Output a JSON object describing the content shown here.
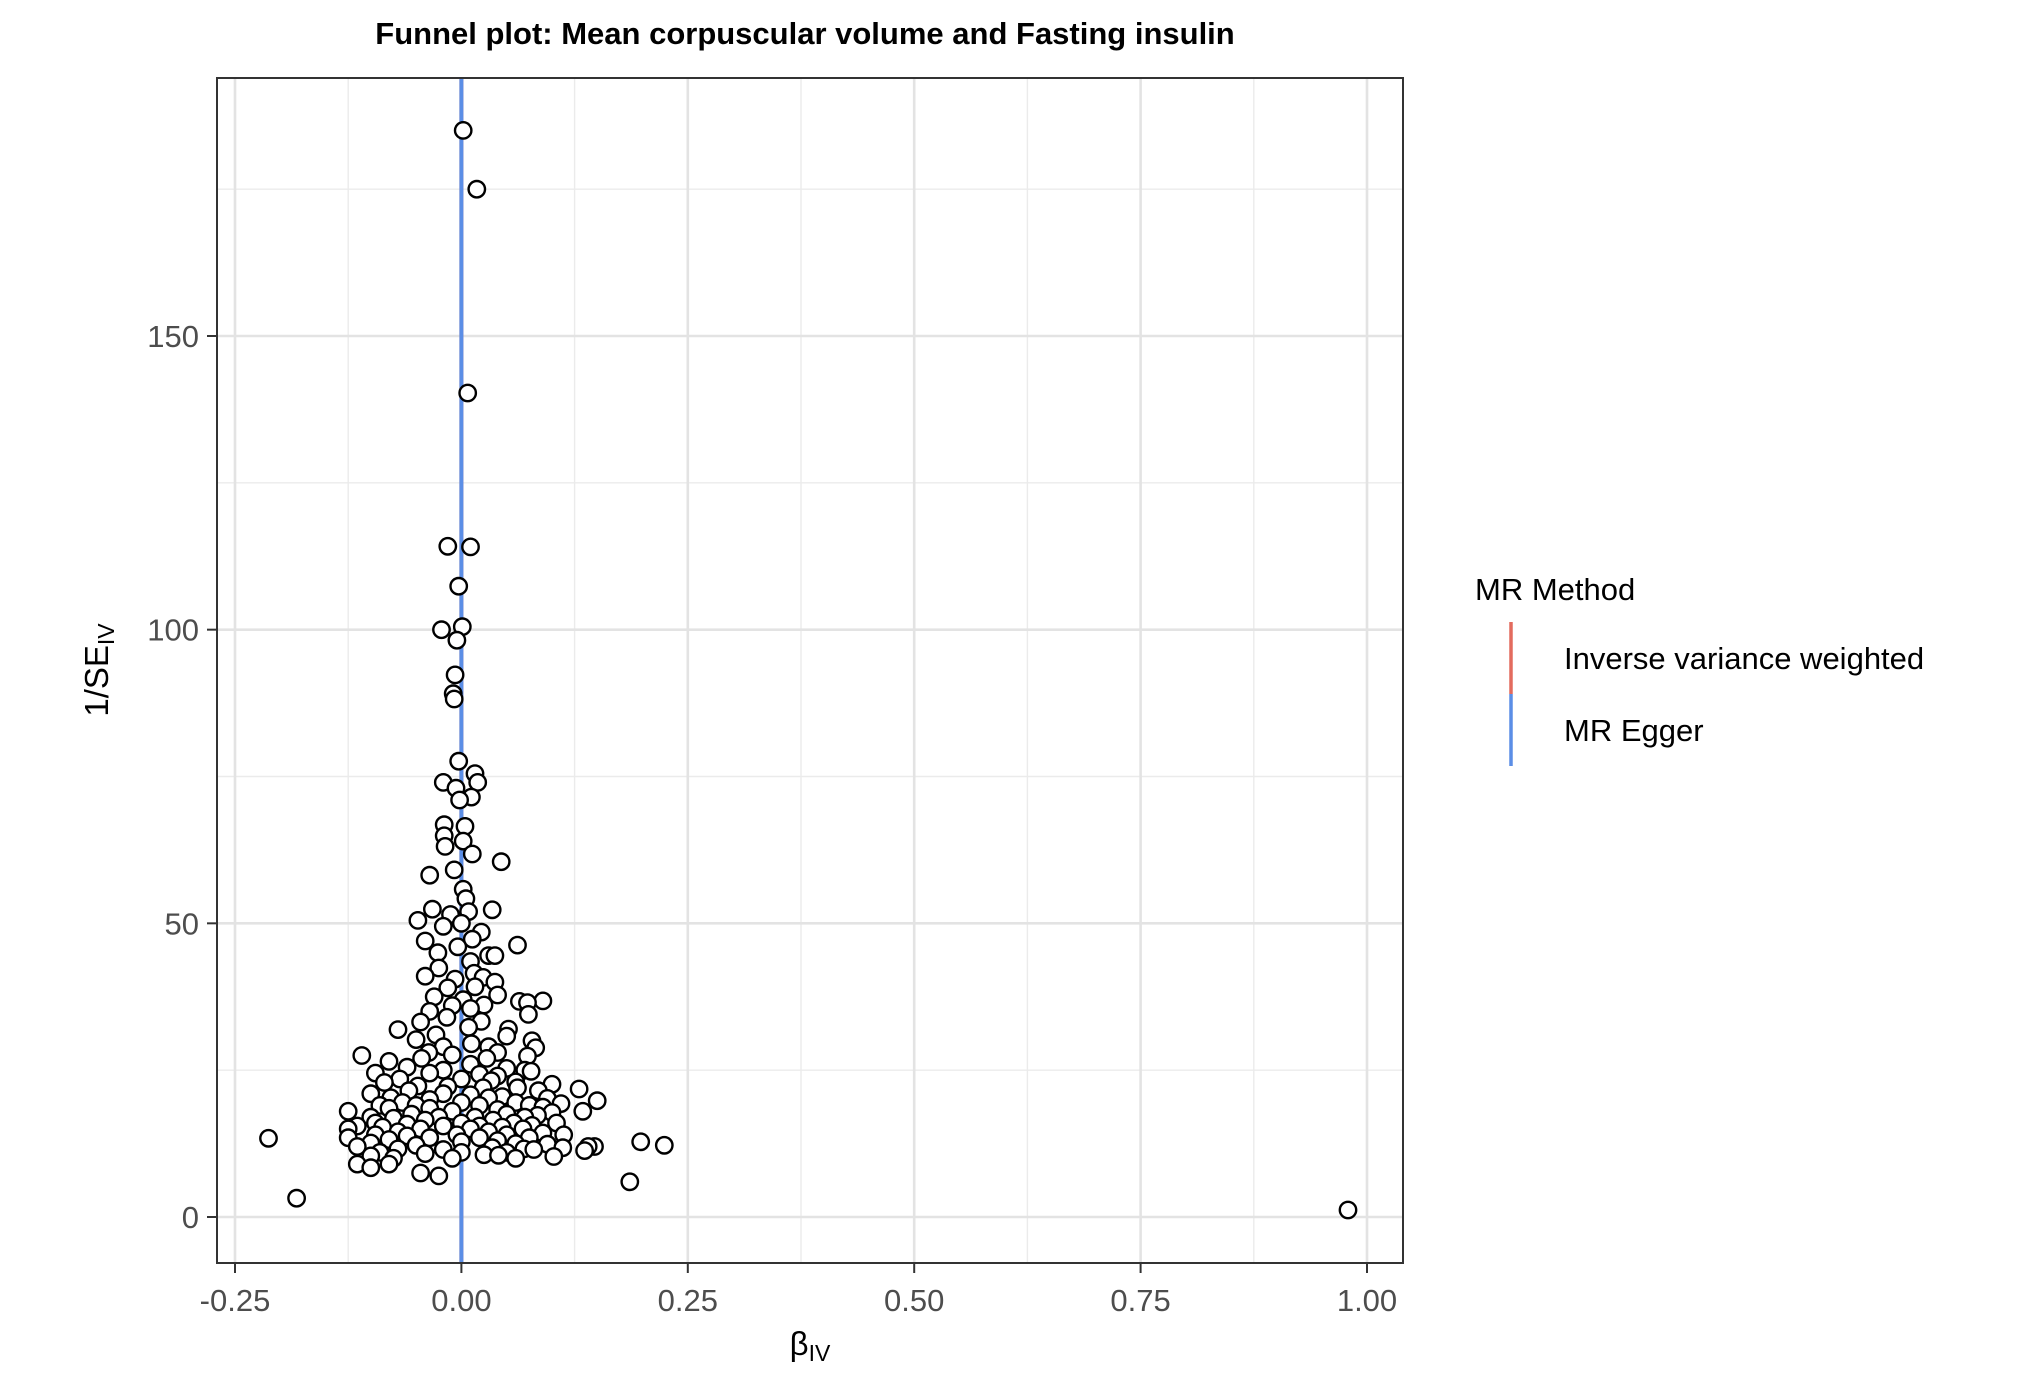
{
  "chart_data": {
    "type": "scatter",
    "title": "Funnel plot: Mean corpuscular volume and Fasting insulin",
    "xlabel": {
      "main": "β",
      "sub": "IV"
    },
    "ylabel": {
      "main": "1/SE",
      "sub": "IV"
    },
    "xlim": [
      -0.25,
      1.0
    ],
    "ylim": [
      0,
      185
    ],
    "x_ticks": [
      {
        "value": -0.25,
        "label": "-0.25"
      },
      {
        "value": 0.0,
        "label": "0.00"
      },
      {
        "value": 0.25,
        "label": "0.25"
      },
      {
        "value": 0.5,
        "label": "0.50"
      },
      {
        "value": 0.75,
        "label": "0.75"
      },
      {
        "value": 1.0,
        "label": "1.00"
      }
    ],
    "y_ticks": [
      {
        "value": 0,
        "label": "0"
      },
      {
        "value": 50,
        "label": "50"
      },
      {
        "value": 100,
        "label": "100"
      },
      {
        "value": 150,
        "label": "150"
      }
    ],
    "grid": true,
    "legend": {
      "title": "MR Method",
      "position": "right",
      "entries": [
        {
          "label": "Inverse variance weighted",
          "color": "#e36b5e"
        },
        {
          "label": "MR Egger",
          "color": "#5b8ee6"
        }
      ]
    },
    "lines": [
      {
        "method": "Inverse variance weighted",
        "x": 0.0
      },
      {
        "method": "MR Egger",
        "x": 0.0
      }
    ],
    "points": [
      [
        0.002,
        185.0
      ],
      [
        0.017,
        175.0
      ],
      [
        0.007,
        140.3
      ],
      [
        -0.015,
        114.2
      ],
      [
        0.01,
        114.1
      ],
      [
        -0.003,
        107.4
      ],
      [
        -0.022,
        100.0
      ],
      [
        0.001,
        100.5
      ],
      [
        -0.005,
        98.2
      ],
      [
        -0.007,
        92.3
      ],
      [
        -0.009,
        89.1
      ],
      [
        -0.008,
        88.2
      ],
      [
        -0.003,
        77.6
      ],
      [
        0.015,
        75.5
      ],
      [
        -0.02,
        74.0
      ],
      [
        0.018,
        74.0
      ],
      [
        -0.006,
        73.0
      ],
      [
        0.011,
        71.5
      ],
      [
        -0.002,
        71.0
      ],
      [
        -0.019,
        66.8
      ],
      [
        0.004,
        66.5
      ],
      [
        -0.019,
        64.9
      ],
      [
        0.002,
        64.0
      ],
      [
        -0.018,
        63.1
      ],
      [
        0.012,
        61.8
      ],
      [
        0.044,
        60.5
      ],
      [
        -0.035,
        58.2
      ],
      [
        -0.008,
        59.1
      ],
      [
        0.002,
        55.8
      ],
      [
        0.005,
        54.2
      ],
      [
        -0.032,
        52.4
      ],
      [
        -0.012,
        51.5
      ],
      [
        0.008,
        52.0
      ],
      [
        0.034,
        52.3
      ],
      [
        -0.048,
        50.5
      ],
      [
        0.0,
        50.0
      ],
      [
        -0.02,
        49.5
      ],
      [
        0.022,
        48.5
      ],
      [
        0.012,
        47.3
      ],
      [
        -0.04,
        47.0
      ],
      [
        0.062,
        46.3
      ],
      [
        -0.004,
        46.0
      ],
      [
        -0.026,
        45.0
      ],
      [
        0.03,
        44.5
      ],
      [
        0.037,
        44.5
      ],
      [
        0.01,
        43.5
      ],
      [
        -0.025,
        42.4
      ],
      [
        0.014,
        41.5
      ],
      [
        -0.04,
        41.0
      ],
      [
        -0.007,
        40.5
      ],
      [
        0.024,
        40.8
      ],
      [
        0.037,
        40.0
      ],
      [
        -0.015,
        39.0
      ],
      [
        0.015,
        39.2
      ],
      [
        -0.03,
        37.5
      ],
      [
        0.002,
        37.0
      ],
      [
        0.04,
        37.8
      ],
      [
        0.064,
        36.7
      ],
      [
        0.09,
        36.8
      ],
      [
        0.073,
        36.5
      ],
      [
        -0.01,
        36.0
      ],
      [
        0.025,
        36.1
      ],
      [
        0.01,
        35.5
      ],
      [
        -0.035,
        35.0
      ],
      [
        0.074,
        34.5
      ],
      [
        -0.016,
        34.0
      ],
      [
        0.022,
        33.3
      ],
      [
        -0.045,
        33.2
      ],
      [
        0.052,
        32.0
      ],
      [
        -0.07,
        31.9
      ],
      [
        0.008,
        32.3
      ],
      [
        -0.028,
        31.0
      ],
      [
        0.05,
        30.8
      ],
      [
        -0.05,
        30.2
      ],
      [
        0.078,
        30.0
      ],
      [
        0.011,
        29.5
      ],
      [
        -0.02,
        29.0
      ],
      [
        0.03,
        29.0
      ],
      [
        0.082,
        28.8
      ],
      [
        -0.036,
        28.0
      ],
      [
        -0.01,
        27.6
      ],
      [
        0.04,
        28.0
      ],
      [
        -0.11,
        27.5
      ],
      [
        0.073,
        27.4
      ],
      [
        -0.044,
        27.0
      ],
      [
        0.028,
        27.0
      ],
      [
        -0.08,
        26.5
      ],
      [
        0.01,
        26.0
      ],
      [
        0.05,
        25.3
      ],
      [
        -0.06,
        25.5
      ],
      [
        -0.02,
        25.0
      ],
      [
        0.07,
        25.0
      ],
      [
        0.077,
        24.8
      ],
      [
        -0.095,
        24.5
      ],
      [
        -0.035,
        24.5
      ],
      [
        0.02,
        24.3
      ],
      [
        0.04,
        24.0
      ],
      [
        -0.068,
        23.5
      ],
      [
        0.0,
        23.5
      ],
      [
        0.033,
        23.2
      ],
      [
        0.06,
        23.0
      ],
      [
        -0.085,
        22.9
      ],
      [
        0.1,
        22.6
      ],
      [
        -0.048,
        22.3
      ],
      [
        -0.015,
        22.2
      ],
      [
        0.024,
        22.0
      ],
      [
        0.062,
        22.0
      ],
      [
        0.13,
        21.8
      ],
      [
        -0.058,
        21.5
      ],
      [
        0.085,
        21.5
      ],
      [
        -0.1,
        21.0
      ],
      [
        -0.02,
        21.0
      ],
      [
        0.01,
        20.8
      ],
      [
        0.045,
        20.5
      ],
      [
        -0.078,
        20.3
      ],
      [
        0.03,
        20.3
      ],
      [
        0.095,
        20.2
      ],
      [
        -0.035,
        20.0
      ],
      [
        0.15,
        19.8
      ],
      [
        -0.065,
        19.5
      ],
      [
        0.0,
        19.5
      ],
      [
        0.06,
        19.5
      ],
      [
        0.11,
        19.3
      ],
      [
        -0.09,
        19.0
      ],
      [
        -0.05,
        19.0
      ],
      [
        0.02,
        19.0
      ],
      [
        0.075,
        19.0
      ],
      [
        0.09,
        18.7
      ],
      [
        -0.08,
        18.5
      ],
      [
        -0.035,
        18.5
      ],
      [
        0.04,
        18.3
      ],
      [
        0.134,
        18.0
      ],
      [
        -0.125,
        18.0
      ],
      [
        -0.01,
        18.0
      ],
      [
        0.1,
        17.8
      ],
      [
        -0.055,
        17.5
      ],
      [
        0.05,
        17.5
      ],
      [
        0.084,
        17.3
      ],
      [
        -0.1,
        17.0
      ],
      [
        -0.025,
        17.0
      ],
      [
        0.015,
        17.0
      ],
      [
        0.07,
        17.0
      ],
      [
        -0.075,
        16.8
      ],
      [
        0.035,
        16.5
      ],
      [
        -0.04,
        16.5
      ],
      [
        -0.095,
        16.0
      ],
      [
        0.0,
        16.0
      ],
      [
        0.058,
        16.0
      ],
      [
        0.105,
        16.0
      ],
      [
        -0.06,
        15.8
      ],
      [
        0.078,
        15.6
      ],
      [
        -0.115,
        15.5
      ],
      [
        -0.02,
        15.5
      ],
      [
        0.02,
        15.5
      ],
      [
        -0.087,
        15.3
      ],
      [
        0.045,
        15.3
      ],
      [
        -0.125,
        15.0
      ],
      [
        -0.045,
        15.0
      ],
      [
        0.01,
        15.0
      ],
      [
        0.068,
        15.0
      ],
      [
        -0.07,
        14.5
      ],
      [
        0.03,
        14.5
      ],
      [
        0.09,
        14.3
      ],
      [
        -0.095,
        14.0
      ],
      [
        -0.005,
        14.0
      ],
      [
        0.05,
        14.0
      ],
      [
        0.113,
        14.0
      ],
      [
        -0.06,
        13.8
      ],
      [
        -0.125,
        13.5
      ],
      [
        -0.035,
        13.5
      ],
      [
        0.02,
        13.5
      ],
      [
        0.075,
        13.5
      ],
      [
        -0.213,
        13.4
      ],
      [
        -0.08,
        13.2
      ],
      [
        0.04,
        13.0
      ],
      [
        0.198,
        12.8
      ],
      [
        -0.1,
        12.6
      ],
      [
        0.0,
        12.8
      ],
      [
        0.06,
        12.5
      ],
      [
        0.095,
        12.4
      ],
      [
        -0.05,
        12.2
      ],
      [
        0.224,
        12.2
      ],
      [
        0.147,
        12.0
      ],
      [
        -0.115,
        12.0
      ],
      [
        0.14,
        12.0
      ],
      [
        0.112,
        11.8
      ],
      [
        0.034,
        11.8
      ],
      [
        -0.07,
        11.6
      ],
      [
        0.069,
        11.6
      ],
      [
        -0.02,
        11.5
      ],
      [
        0.08,
        11.5
      ],
      [
        0.136,
        11.3
      ],
      [
        -0.09,
        11.0
      ],
      [
        0.0,
        11.0
      ],
      [
        0.05,
        11.0
      ],
      [
        -0.04,
        10.8
      ],
      [
        0.025,
        10.6
      ],
      [
        0.041,
        10.5
      ],
      [
        -0.1,
        10.4
      ],
      [
        0.102,
        10.3
      ],
      [
        -0.075,
        10.0
      ],
      [
        -0.01,
        10.0
      ],
      [
        0.06,
        10.0
      ],
      [
        -0.115,
        9.0
      ],
      [
        -0.08,
        9.0
      ],
      [
        -0.1,
        8.4
      ],
      [
        0.186,
        6.0
      ],
      [
        -0.045,
        7.5
      ],
      [
        -0.025,
        7.0
      ],
      [
        -0.182,
        3.2
      ],
      [
        0.979,
        1.2
      ]
    ]
  }
}
